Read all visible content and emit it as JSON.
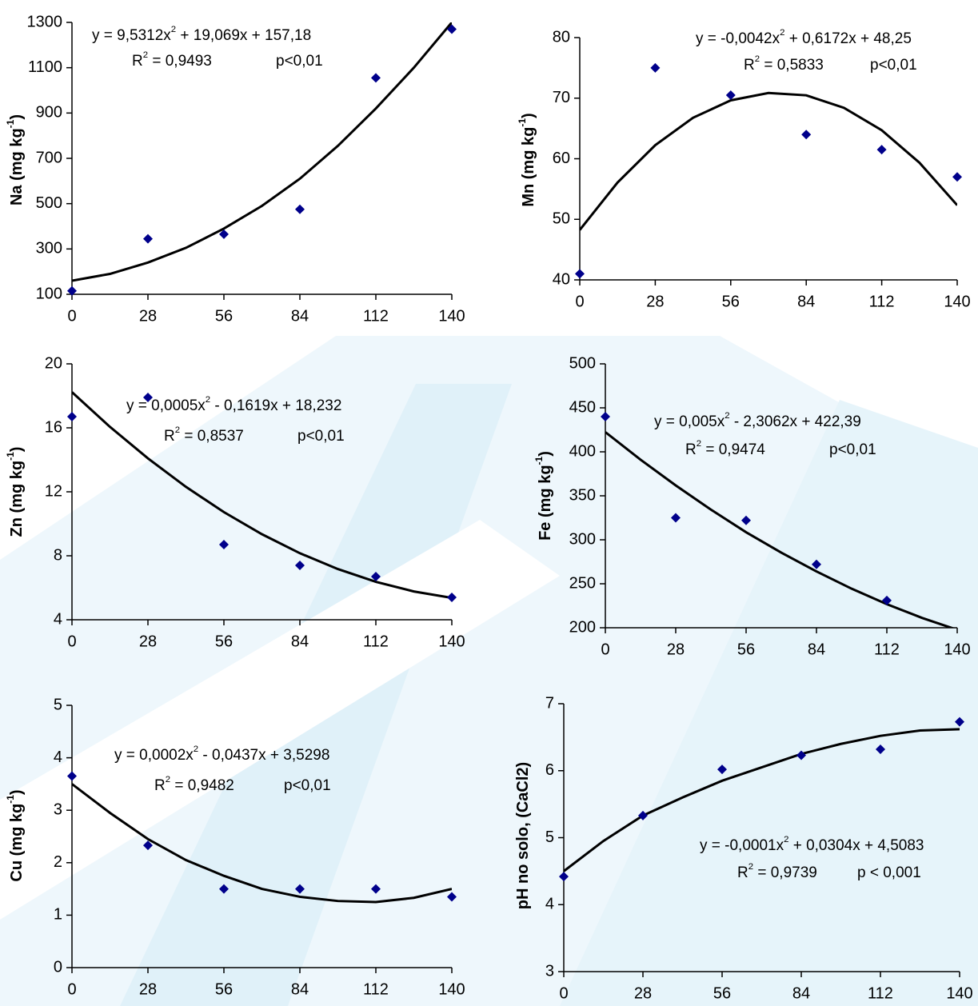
{
  "chart_data": [
    {
      "type": "scatter",
      "ylabel": [
        "Na (mg kg",
        "-1",
        ")"
      ],
      "equation": [
        "y = 9,5312x",
        "2",
        " + 19,069x + 157,18"
      ],
      "r2": [
        "R",
        "2",
        " = 0,9493"
      ],
      "p": "p<0,01",
      "x": [
        0,
        28,
        56,
        84,
        112,
        140
      ],
      "xlim": [
        0,
        140
      ],
      "xticks": [
        0,
        28,
        56,
        84,
        112,
        140
      ],
      "ylim": [
        100,
        1300
      ],
      "yticks": [
        100,
        300,
        500,
        700,
        900,
        1100,
        1300
      ],
      "series": [
        {
          "color": "#00008b",
          "values": [
            115,
            345,
            365,
            475,
            1055,
            1270
          ]
        },
        {
          "color": "#000000",
          "x": [
            0,
            14,
            28,
            42,
            56,
            70,
            84,
            98,
            112,
            126,
            140
          ],
          "values": [
            160,
            190,
            240,
            305,
            390,
            490,
            610,
            755,
            920,
            1100,
            1300
          ]
        }
      ]
    },
    {
      "type": "scatter",
      "ylabel": [
        "Mn (mg kg",
        "-1",
        ")"
      ],
      "equation": [
        "y = -0,0042x",
        "2",
        " + 0,6172x + 48,25"
      ],
      "r2": [
        "R",
        "2",
        " = 0,5833"
      ],
      "p": "p<0,01",
      "x": [
        0,
        28,
        56,
        84,
        112,
        140
      ],
      "xlim": [
        0,
        140
      ],
      "xticks": [
        0,
        28,
        56,
        84,
        112,
        140
      ],
      "ylim": [
        40,
        80
      ],
      "yticks": [
        40,
        50,
        60,
        70,
        80
      ],
      "series": [
        {
          "color": "#00008b",
          "values": [
            41,
            75,
            70.5,
            64,
            61.5,
            57
          ]
        },
        {
          "color": "#000000",
          "x": [
            0,
            14,
            28,
            42,
            56,
            70,
            84,
            98,
            112,
            126,
            140
          ],
          "values": [
            48.25,
            56.07,
            62.24,
            66.76,
            69.64,
            70.86,
            70.47,
            68.4,
            64.7,
            59.34,
            52.33
          ]
        }
      ]
    },
    {
      "type": "scatter",
      "ylabel": [
        "Zn (mg kg",
        "-1",
        ")"
      ],
      "equation": [
        "y = 0,0005x",
        "2",
        " - 0,1619x + 18,232"
      ],
      "r2": [
        "R",
        "2",
        " = 0,8537"
      ],
      "p": "p<0,01",
      "x": [
        0,
        28,
        56,
        84,
        112,
        140
      ],
      "xlim": [
        0,
        140
      ],
      "xticks": [
        0,
        28,
        56,
        84,
        112,
        140
      ],
      "ylim": [
        4,
        20
      ],
      "yticks": [
        4,
        8,
        12,
        16,
        20
      ],
      "series": [
        {
          "color": "#00008b",
          "values": [
            16.7,
            17.9,
            8.7,
            7.4,
            6.7,
            5.4
          ]
        },
        {
          "color": "#000000",
          "x": [
            0,
            14,
            28,
            42,
            56,
            70,
            84,
            98,
            112,
            126,
            140
          ],
          "values": [
            18.23,
            16.06,
            14.09,
            12.31,
            10.73,
            9.35,
            8.16,
            7.17,
            6.37,
            5.77,
            5.37
          ]
        }
      ]
    },
    {
      "type": "scatter",
      "ylabel": [
        "Fe (mg kg",
        "-1",
        ")"
      ],
      "equation": [
        "y = 0,005x",
        "2",
        " - 2,3062x + 422,39"
      ],
      "r2": [
        "R",
        "2",
        " = 0,9474"
      ],
      "p": "p<0,01",
      "x": [
        0,
        28,
        56,
        84,
        112
      ],
      "xlim": [
        0,
        140
      ],
      "xticks": [
        0,
        28,
        56,
        84,
        112,
        140
      ],
      "ylim": [
        200,
        500
      ],
      "yticks": [
        200,
        250,
        300,
        350,
        400,
        450,
        500
      ],
      "series": [
        {
          "color": "#00008b",
          "values": [
            440,
            325,
            322,
            272,
            231
          ]
        },
        {
          "color": "#000000",
          "x": [
            0,
            14,
            28,
            42,
            56,
            70,
            84,
            98,
            112,
            126,
            140
          ],
          "values": [
            422.39,
            391.1,
            361.8,
            334.3,
            308.6,
            285.4,
            264,
            244.4,
            226.8,
            211.2,
            197.7
          ]
        }
      ]
    },
    {
      "type": "scatter",
      "ylabel": [
        "Cu (mg kg",
        "-1",
        ")"
      ],
      "equation": [
        "y = 0,0002x",
        "2",
        " - 0,0437x + 3,5298"
      ],
      "r2": [
        "R",
        "2",
        " = 0,9482"
      ],
      "p": "p<0,01",
      "x": [
        0,
        28,
        56,
        84,
        112,
        140
      ],
      "xlim": [
        0,
        140
      ],
      "xticks": [
        0,
        28,
        56,
        84,
        112,
        140
      ],
      "ylim": [
        0,
        5
      ],
      "yticks": [
        0,
        1,
        2,
        3,
        4,
        5
      ],
      "series": [
        {
          "color": "#00008b",
          "values": [
            3.65,
            2.33,
            1.5,
            1.5,
            1.5,
            1.35
          ]
        },
        {
          "color": "#000000",
          "x": [
            0,
            14,
            28,
            42,
            56,
            70,
            84,
            98,
            112,
            126,
            140
          ],
          "values": [
            3.5,
            2.95,
            2.45,
            2.05,
            1.75,
            1.5,
            1.35,
            1.27,
            1.25,
            1.33,
            1.5
          ]
        }
      ]
    },
    {
      "type": "scatter",
      "ylabel": [
        "pH no solo, (CaCl2)"
      ],
      "equation": [
        "y = -0,0001x",
        "2",
        " + 0,0304x + 4,5083"
      ],
      "r2": [
        "R",
        "2",
        " = 0,9739"
      ],
      "p": "p < 0,001",
      "x": [
        0,
        28,
        56,
        84,
        112,
        140
      ],
      "xlim": [
        0,
        140
      ],
      "xticks": [
        0,
        28,
        56,
        84,
        112,
        140
      ],
      "ylim": [
        3,
        7
      ],
      "yticks": [
        3,
        4,
        5,
        6,
        7
      ],
      "series": [
        {
          "color": "#00008b",
          "values": [
            4.42,
            5.33,
            6.02,
            6.23,
            6.32,
            6.73
          ]
        },
        {
          "color": "#000000",
          "x": [
            0,
            14,
            28,
            42,
            56,
            70,
            84,
            98,
            112,
            126,
            140
          ],
          "values": [
            4.5,
            4.95,
            5.33,
            5.6,
            5.85,
            6.05,
            6.25,
            6.4,
            6.52,
            6.6,
            6.62
          ]
        }
      ]
    }
  ]
}
